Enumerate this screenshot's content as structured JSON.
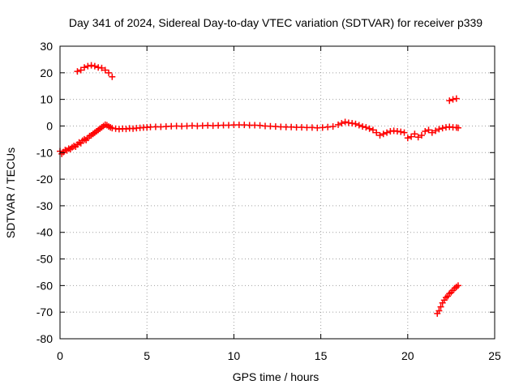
{
  "chart_data": {
    "type": "scatter",
    "title": "Day 341 of 2024, Sidereal Day-to-day VTEC variation (SDTVAR) for receiver p339",
    "xlabel": "GPS time / hours",
    "ylabel": "SDTVAR / TECUs",
    "xlim": [
      0,
      25
    ],
    "ylim": [
      -80,
      30
    ],
    "x_ticks": [
      0,
      5,
      10,
      15,
      20,
      25
    ],
    "y_ticks": [
      30,
      20,
      10,
      0,
      -10,
      -20,
      -30,
      -40,
      -50,
      -60,
      -70,
      -80
    ],
    "grid": true,
    "marker": "plus",
    "series": [
      {
        "name": "SDTVAR",
        "color": "#ff0000",
        "segments": [
          [
            [
              0.0,
              -9.5
            ],
            [
              0.1,
              -10.5
            ],
            [
              0.2,
              -9.8
            ],
            [
              0.3,
              -9.0
            ],
            [
              0.4,
              -9.2
            ],
            [
              0.5,
              -8.5
            ],
            [
              0.6,
              -8.7
            ],
            [
              0.7,
              -8.0
            ],
            [
              0.8,
              -7.5
            ],
            [
              0.9,
              -7.8
            ],
            [
              1.0,
              -7.0
            ],
            [
              1.1,
              -6.2
            ],
            [
              1.2,
              -6.5
            ],
            [
              1.3,
              -5.5
            ],
            [
              1.4,
              -5.0
            ],
            [
              1.5,
              -5.3
            ],
            [
              1.6,
              -4.5
            ],
            [
              1.7,
              -3.8
            ],
            [
              1.8,
              -3.5
            ],
            [
              1.9,
              -3.0
            ],
            [
              2.0,
              -2.5
            ],
            [
              2.1,
              -2.0
            ],
            [
              2.2,
              -1.5
            ],
            [
              2.3,
              -1.0
            ],
            [
              2.4,
              -0.5
            ],
            [
              2.5,
              0.0
            ],
            [
              2.6,
              0.5
            ],
            [
              2.7,
              0.3
            ],
            [
              2.8,
              -0.2
            ],
            [
              2.9,
              -0.5
            ],
            [
              3.0,
              -0.8
            ],
            [
              3.2,
              -1.0
            ],
            [
              3.4,
              -1.2
            ],
            [
              3.6,
              -1.0
            ],
            [
              3.8,
              -1.1
            ],
            [
              4.0,
              -0.9
            ],
            [
              4.2,
              -1.0
            ],
            [
              4.4,
              -0.8
            ],
            [
              4.6,
              -0.7
            ],
            [
              4.8,
              -0.6
            ],
            [
              5.0,
              -0.5
            ],
            [
              5.2,
              -0.4
            ],
            [
              5.5,
              -0.3
            ],
            [
              5.8,
              -0.3
            ],
            [
              6.1,
              -0.2
            ],
            [
              6.4,
              -0.1
            ],
            [
              6.7,
              0.0
            ],
            [
              7.0,
              -0.1
            ],
            [
              7.3,
              0.0
            ],
            [
              7.6,
              0.1
            ],
            [
              7.9,
              0.0
            ],
            [
              8.2,
              0.1
            ],
            [
              8.5,
              0.2
            ],
            [
              8.8,
              0.1
            ],
            [
              9.1,
              0.2
            ],
            [
              9.4,
              0.3
            ],
            [
              9.7,
              0.3
            ],
            [
              10.0,
              0.4
            ],
            [
              10.3,
              0.4
            ],
            [
              10.6,
              0.4
            ],
            [
              10.9,
              0.3
            ],
            [
              11.2,
              0.3
            ],
            [
              11.5,
              0.2
            ],
            [
              11.8,
              0.0
            ],
            [
              12.1,
              -0.1
            ],
            [
              12.4,
              -0.2
            ],
            [
              12.7,
              -0.3
            ],
            [
              13.0,
              -0.4
            ],
            [
              13.3,
              -0.4
            ],
            [
              13.6,
              -0.5
            ],
            [
              13.9,
              -0.5
            ],
            [
              14.2,
              -0.6
            ],
            [
              14.5,
              -0.6
            ],
            [
              14.8,
              -0.7
            ],
            [
              15.1,
              -0.6
            ],
            [
              15.4,
              -0.4
            ],
            [
              15.7,
              -0.2
            ],
            [
              16.0,
              0.5
            ],
            [
              16.2,
              1.0
            ],
            [
              16.4,
              1.5
            ],
            [
              16.6,
              1.2
            ],
            [
              16.8,
              1.0
            ],
            [
              17.0,
              0.8
            ],
            [
              17.2,
              0.3
            ],
            [
              17.4,
              -0.2
            ],
            [
              17.6,
              -0.5
            ],
            [
              17.8,
              -1.0
            ],
            [
              18.0,
              -1.5
            ],
            [
              18.2,
              -2.5
            ],
            [
              18.4,
              -3.5
            ],
            [
              18.6,
              -3.0
            ],
            [
              18.8,
              -2.5
            ],
            [
              19.0,
              -2.0
            ],
            [
              19.2,
              -1.8
            ],
            [
              19.4,
              -2.0
            ],
            [
              19.6,
              -2.2
            ],
            [
              19.8,
              -2.5
            ],
            [
              20.0,
              -4.5
            ],
            [
              20.2,
              -4.0
            ],
            [
              20.4,
              -3.0
            ],
            [
              20.6,
              -4.2
            ],
            [
              20.8,
              -3.5
            ],
            [
              21.0,
              -2.0
            ],
            [
              21.2,
              -1.5
            ],
            [
              21.4,
              -2.5
            ],
            [
              21.6,
              -1.8
            ],
            [
              21.8,
              -1.2
            ],
            [
              22.0,
              -0.8
            ],
            [
              22.2,
              -0.5
            ],
            [
              22.4,
              -0.3
            ],
            [
              22.6,
              -0.5
            ],
            [
              22.8,
              -0.6
            ],
            [
              22.9,
              -0.7
            ]
          ],
          [
            [
              1.0,
              20.5
            ],
            [
              1.2,
              21.0
            ],
            [
              1.4,
              22.0
            ],
            [
              1.6,
              22.5
            ],
            [
              1.8,
              22.8
            ],
            [
              2.0,
              22.5
            ],
            [
              2.2,
              22.0
            ],
            [
              2.4,
              21.8
            ],
            [
              2.6,
              21.0
            ],
            [
              2.8,
              20.0
            ],
            [
              3.0,
              18.5
            ]
          ],
          [
            [
              22.4,
              9.5
            ],
            [
              22.6,
              10.0
            ],
            [
              22.8,
              10.3
            ]
          ],
          [
            [
              21.7,
              -70.5
            ],
            [
              21.8,
              -69.5
            ],
            [
              21.9,
              -68.0
            ],
            [
              22.0,
              -66.5
            ],
            [
              22.1,
              -65.5
            ],
            [
              22.2,
              -64.5
            ],
            [
              22.3,
              -64.0
            ],
            [
              22.4,
              -63.0
            ],
            [
              22.5,
              -62.5
            ],
            [
              22.6,
              -61.8
            ],
            [
              22.7,
              -61.0
            ],
            [
              22.8,
              -60.5
            ],
            [
              22.9,
              -60.0
            ]
          ]
        ]
      }
    ]
  }
}
